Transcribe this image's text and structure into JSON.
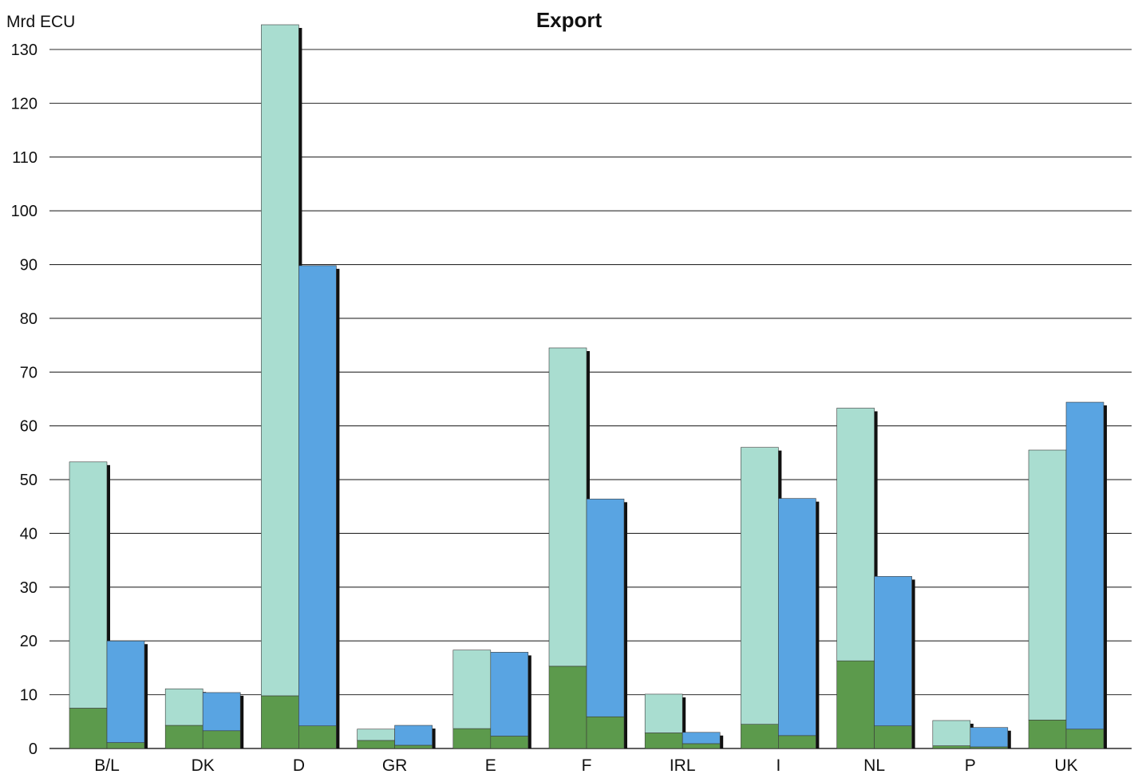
{
  "colors": {
    "background": "#ffffff",
    "gridline": "#2b2b2b",
    "left_bar": "#a9ddd0",
    "right_bar": "#59a4e2",
    "bottom_segment": "#5c9a4c",
    "shadow": "#111111"
  },
  "chart_data": {
    "type": "bar",
    "title": "Export",
    "ylabel": "Mrd ECU",
    "xlabel": "",
    "ylim": [
      0,
      130
    ],
    "yticks": [
      0,
      10,
      20,
      30,
      40,
      50,
      60,
      70,
      80,
      90,
      100,
      110,
      120,
      130
    ],
    "grid": true,
    "stacked": true,
    "categories": [
      "B/L",
      "DK",
      "D",
      "GR",
      "E",
      "F",
      "IRL",
      "I",
      "NL",
      "P",
      "UK"
    ],
    "groups": [
      {
        "segments": [
          {
            "values": [
              7.5,
              4.3,
              9.8,
              1.5,
              3.7,
              15.3,
              2.9,
              4.5,
              16.3,
              0.5,
              5.3
            ]
          },
          {
            "values": [
              45.8,
              6.8,
              124.8,
              2.1,
              14.6,
              59.2,
              7.2,
              51.5,
              47.0,
              4.7,
              50.2
            ]
          }
        ]
      },
      {
        "segments": [
          {
            "values": [
              1.1,
              3.3,
              4.2,
              0.6,
              2.3,
              5.9,
              0.9,
              2.4,
              4.2,
              0.3,
              3.6
            ]
          },
          {
            "values": [
              18.9,
              7.1,
              85.6,
              3.7,
              15.6,
              40.5,
              2.1,
              44.1,
              27.8,
              3.6,
              60.8
            ]
          }
        ]
      }
    ]
  }
}
